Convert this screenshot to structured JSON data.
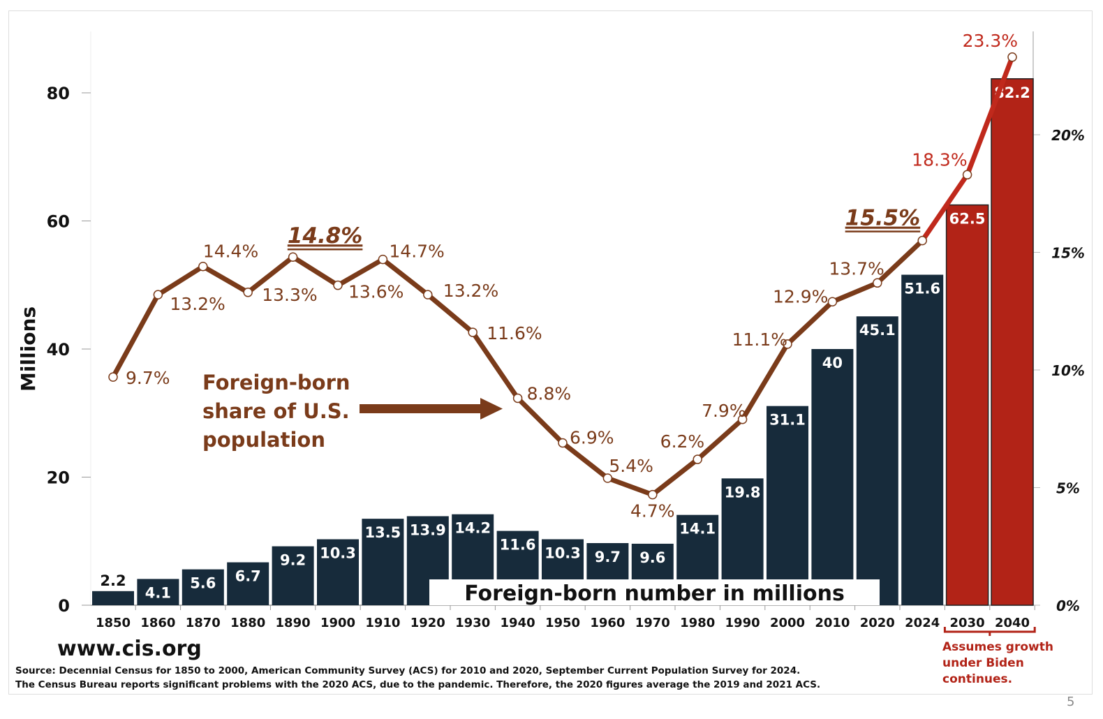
{
  "chart_data": {
    "type": "bar+line",
    "categories": [
      "1850",
      "1860",
      "1870",
      "1880",
      "1890",
      "1900",
      "1910",
      "1920",
      "1930",
      "1940",
      "1950",
      "1960",
      "1970",
      "1980",
      "1990",
      "2000",
      "2010",
      "2020",
      "2024",
      "2030",
      "2040"
    ],
    "bar_series": {
      "name": "Foreign-born number in millions",
      "values": [
        2.2,
        4.1,
        5.6,
        6.7,
        9.2,
        10.3,
        13.5,
        13.9,
        14.2,
        11.6,
        10.3,
        9.7,
        9.6,
        14.1,
        19.8,
        31.1,
        40,
        45.1,
        51.6,
        62.5,
        82.2
      ],
      "labels": [
        "2.2",
        "4.1",
        "5.6",
        "6.7",
        "9.2",
        "10.3",
        "13.5",
        "13.9",
        "14.2",
        "11.6",
        "10.3",
        "9.7",
        "9.6",
        "14.1",
        "19.8",
        "31.1",
        "40",
        "45.1",
        "51.6",
        "62.5",
        "82.2"
      ]
    },
    "line_series": {
      "name": "Foreign-born share of U.S. population",
      "values": [
        9.7,
        13.2,
        14.4,
        13.3,
        14.8,
        13.6,
        14.7,
        13.2,
        11.6,
        8.8,
        6.9,
        5.4,
        4.7,
        6.2,
        7.9,
        11.1,
        12.9,
        13.7,
        15.5,
        18.3,
        23.3
      ],
      "labels": [
        "9.7%",
        "13.2%",
        "14.4%",
        "13.3%",
        "14.8%",
        "13.6%",
        "14.7%",
        "13.2%",
        "11.6%",
        "8.8%",
        "6.9%",
        "5.4%",
        "4.7%",
        "6.2%",
        "7.9%",
        "11.1%",
        "12.9%",
        "13.7%",
        "15.5%",
        "18.3%",
        "23.3%"
      ],
      "highlighted": [
        "1890",
        "2024"
      ]
    },
    "projected_categories": [
      "2030",
      "2040"
    ],
    "ylabel": "Millions",
    "ylim": [
      0,
      90
    ],
    "yticks": [
      "0",
      "20",
      "40",
      "60",
      "80"
    ],
    "y2lim": [
      0,
      24.5
    ],
    "y2ticks": [
      "0%",
      "5%",
      "10%",
      "15%",
      "20%"
    ],
    "grid": false,
    "colors": {
      "bar": "#172b3b",
      "bar_projected": "#b22317",
      "line": "#7a3b1a",
      "line_projected": "#c0291c"
    }
  },
  "annotation": {
    "lines": [
      "Foreign-born",
      "share of U.S.",
      "population"
    ]
  },
  "legend_label": "Foreign-born number in millions",
  "projection_note": "Assumes growth under Biden continues.",
  "website": "www.cis.org",
  "source_lines": [
    "Source: Decennial Census for 1850 to 2000, American Community Survey (ACS) for 2010 and 2020, September Current Population Survey for 2024.",
    "The Census Bureau reports significant problems with the 2020 ACS, due to the pandemic.  Therefore, the 2020 figures average the 2019 and 2021 ACS."
  ],
  "page_number": "5"
}
